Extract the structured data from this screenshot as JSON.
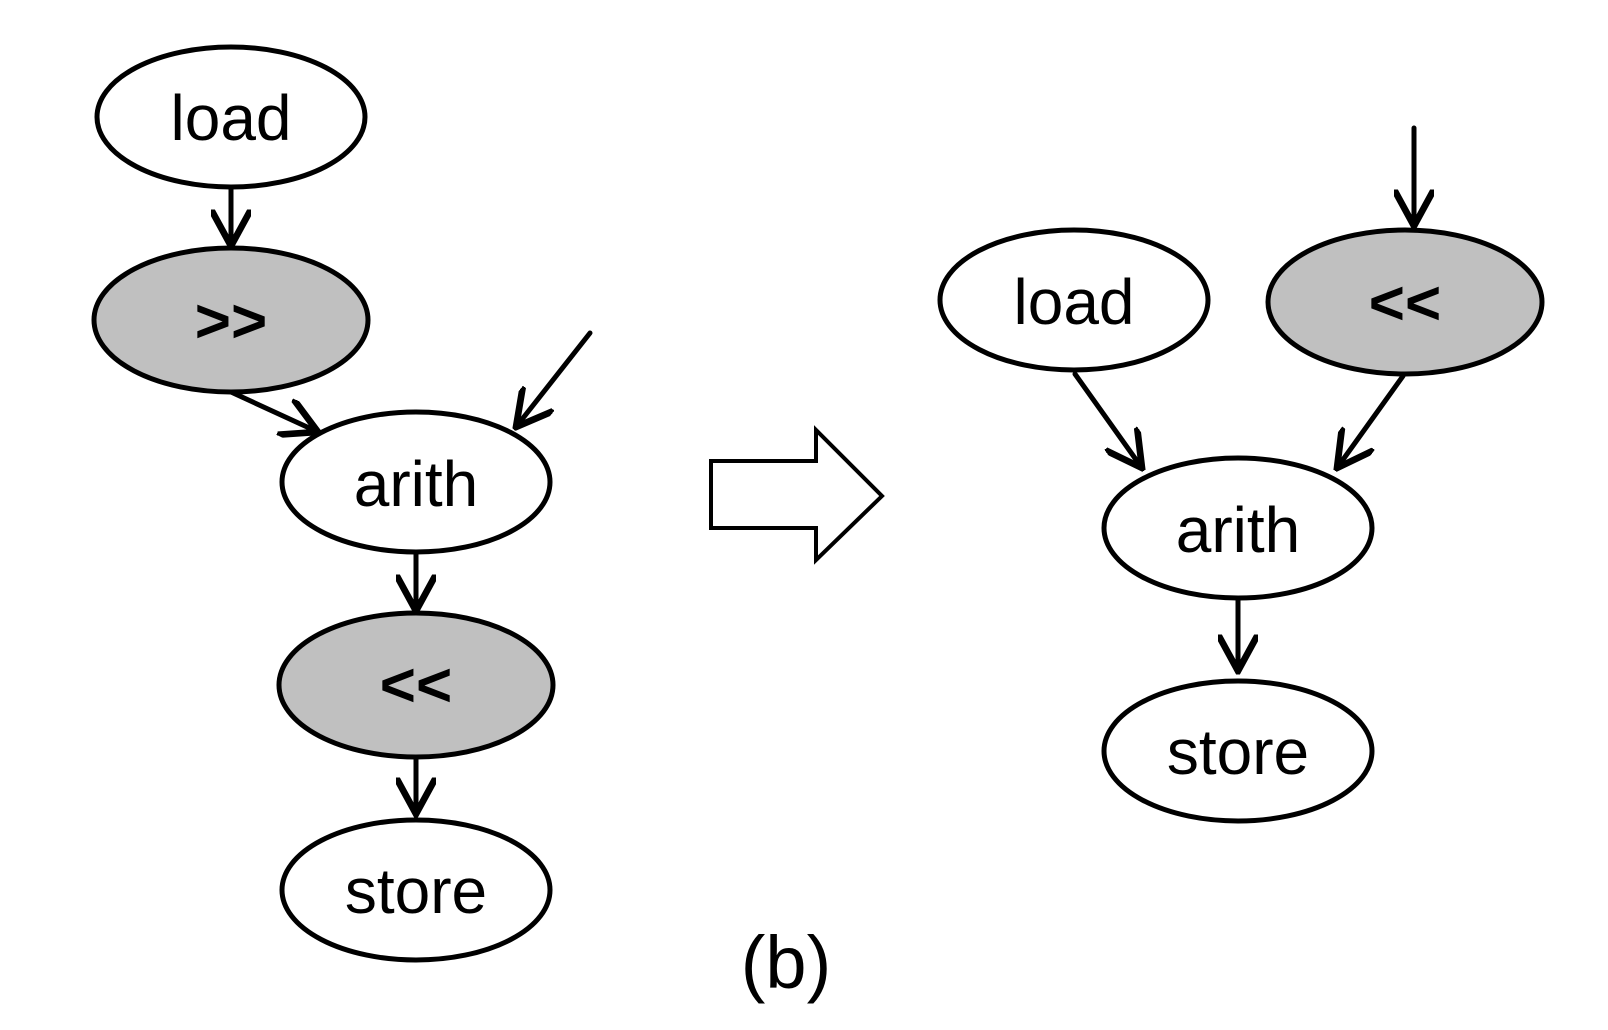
{
  "colors": {
    "plain_fill": "#ffffff",
    "shifted_fill": "#c0c0c0",
    "stroke": "#000000"
  },
  "before_graph": {
    "nodes": [
      {
        "id": "load",
        "label": "load",
        "kind": "plain"
      },
      {
        "id": "shr",
        "label": ">>",
        "kind": "shift"
      },
      {
        "id": "arith",
        "label": "arith",
        "kind": "plain"
      },
      {
        "id": "shl",
        "label": "<<",
        "kind": "shift"
      },
      {
        "id": "store",
        "label": "store",
        "kind": "plain"
      }
    ],
    "edges": [
      {
        "from": "load",
        "to": "shr"
      },
      {
        "from": "shr",
        "to": "arith"
      },
      {
        "from": "external-input",
        "to": "arith"
      },
      {
        "from": "arith",
        "to": "shl"
      },
      {
        "from": "shl",
        "to": "store"
      }
    ]
  },
  "after_graph": {
    "nodes": [
      {
        "id": "load",
        "label": "load",
        "kind": "plain"
      },
      {
        "id": "shl",
        "label": "<<",
        "kind": "shift"
      },
      {
        "id": "arith",
        "label": "arith",
        "kind": "plain"
      },
      {
        "id": "store",
        "label": "store",
        "kind": "plain"
      }
    ],
    "edges": [
      {
        "from": "external-input",
        "to": "shl"
      },
      {
        "from": "load",
        "to": "arith"
      },
      {
        "from": "shl",
        "to": "arith"
      },
      {
        "from": "arith",
        "to": "store"
      }
    ]
  },
  "transform_arrow": "right-arrow-icon",
  "caption": "(b)"
}
